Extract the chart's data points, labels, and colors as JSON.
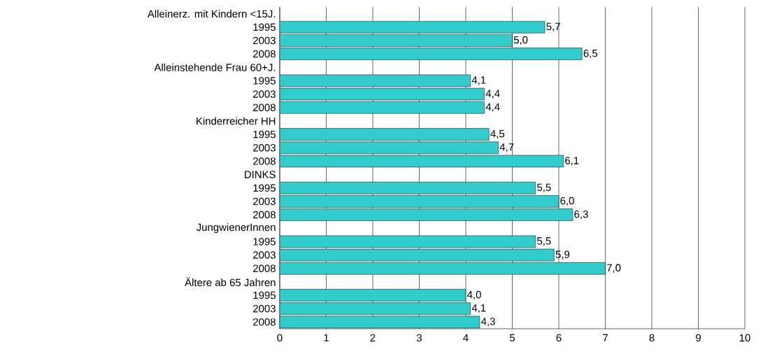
{
  "chart_data": {
    "type": "bar",
    "orientation": "horizontal",
    "color": "#33cccc",
    "categories": [
      "Alleinerz. mit Kindern <15J.",
      "1995",
      "2003",
      "2008",
      "Alleinstehende Frau 60+J.",
      "1995",
      "2003",
      "2008",
      "Kinderreicher HH",
      "1995",
      "2003",
      "2008",
      "DINKS",
      "1995",
      "2003",
      "2008",
      "JungwienerInnen",
      "1995",
      "2003",
      "2008",
      "Ältere ab 65 Jahren",
      "1995",
      "2003",
      "2008"
    ],
    "values": [
      null,
      5.7,
      5.0,
      6.5,
      null,
      4.1,
      4.4,
      4.4,
      null,
      4.5,
      4.7,
      6.1,
      null,
      5.5,
      6.0,
      6.3,
      null,
      5.5,
      5.9,
      7.0,
      null,
      4.0,
      4.1,
      4.3
    ],
    "value_labels": [
      null,
      "5,7",
      "5,0",
      "6,5",
      null,
      "4,1",
      "4,4",
      "4,4",
      null,
      "4,5",
      "4,7",
      "6,1",
      null,
      "5,5",
      "6,0",
      "6,3",
      null,
      "5,5",
      "5,9",
      "7,0",
      null,
      "4,0",
      "4,1",
      "4,3"
    ],
    "xlim": [
      0,
      10
    ],
    "xticks": [
      0,
      1,
      2,
      3,
      4,
      5,
      6,
      7,
      8,
      9,
      10
    ],
    "grid": "x"
  }
}
